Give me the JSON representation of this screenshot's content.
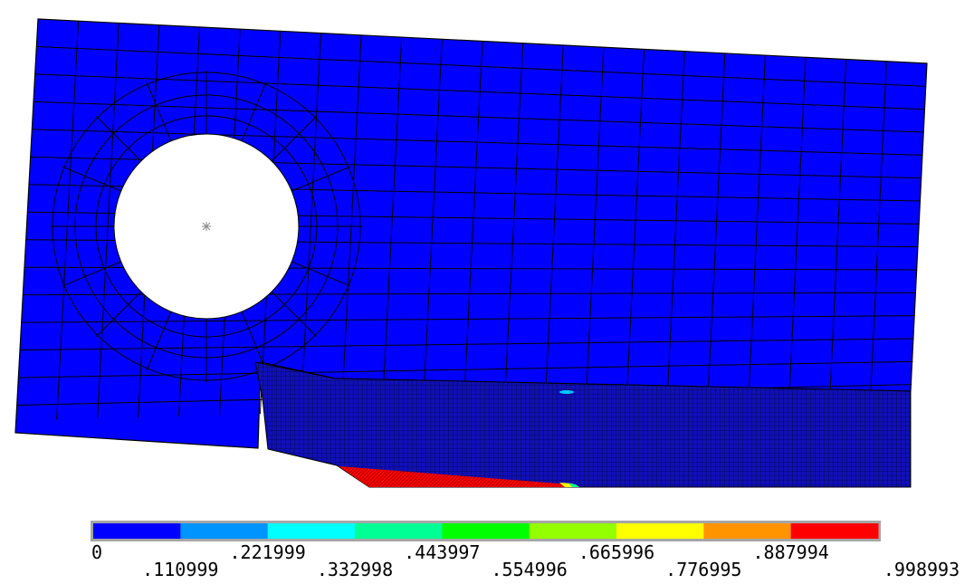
{
  "chart_data": {
    "type": "heatmap",
    "title": "",
    "colormap": [
      "#0000ff",
      "#0094ff",
      "#00ffff",
      "#00ff94",
      "#00ff00",
      "#94ff00",
      "#ffff00",
      "#ff9400",
      "#ff0000"
    ],
    "legend_ticks": [
      "0",
      ".110999",
      ".221999",
      ".332998",
      ".443997",
      ".554996",
      ".665996",
      ".776995",
      ".887994",
      ".998993"
    ],
    "range": [
      0,
      0.998993
    ],
    "legend_placement": "bottom"
  },
  "colors": {
    "mesh_lines": "#000000",
    "legend_border": "#a6a6a6",
    "hole_fill": "#ffffff"
  }
}
